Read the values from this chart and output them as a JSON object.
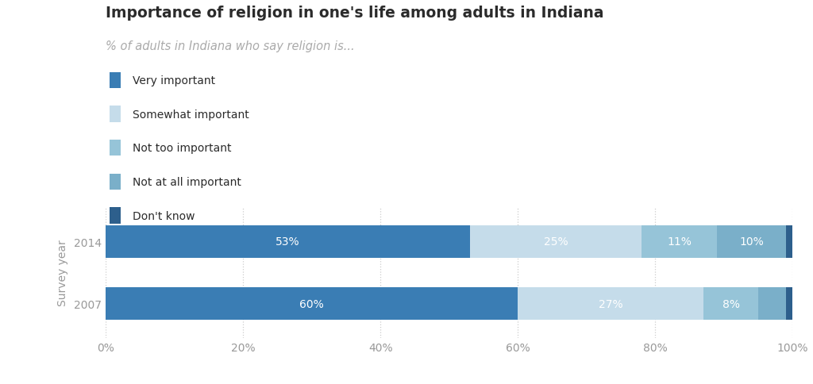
{
  "title": "Importance of religion in one's life among adults in Indiana",
  "subtitle": "% of adults in Indiana who say religion is...",
  "ylabel": "Survey year",
  "years": [
    "2014",
    "2007"
  ],
  "categories": [
    "Very important",
    "Somewhat important",
    "Not too important",
    "Not at all important",
    "Don't know"
  ],
  "colors": [
    "#3a7db4",
    "#c5dcea",
    "#96c4d8",
    "#7aafc9",
    "#2d5f8c"
  ],
  "data": {
    "2014": [
      53,
      25,
      11,
      10,
      1
    ],
    "2007": [
      60,
      27,
      8,
      4,
      1
    ]
  },
  "background_color": "#ffffff",
  "grid_color": "#cccccc",
  "bar_height": 0.52,
  "xlim": [
    0,
    100
  ],
  "xticks": [
    0,
    20,
    40,
    60,
    80,
    100
  ],
  "xtick_labels": [
    "0%",
    "20%",
    "40%",
    "60%",
    "80%",
    "100%"
  ],
  "title_fontsize": 13.5,
  "subtitle_fontsize": 10.5,
  "bar_label_fontsize": 10,
  "tick_fontsize": 10,
  "legend_fontsize": 10,
  "text_color": "#2b2b2b",
  "subtitle_color": "#aaaaaa",
  "tick_color": "#999999",
  "axis_label_fontsize": 10
}
